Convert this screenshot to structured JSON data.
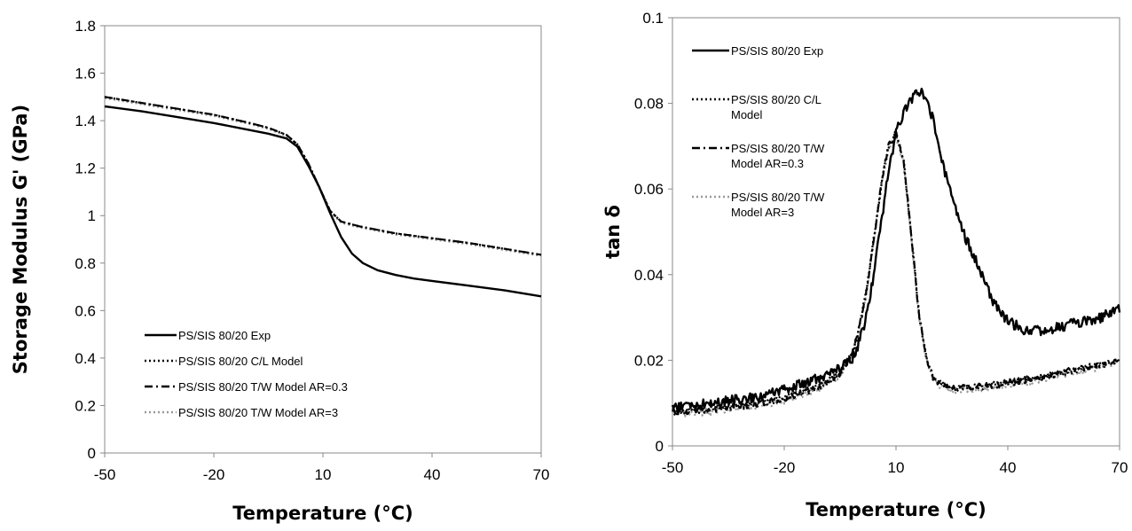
{
  "chart_data": [
    {
      "type": "line",
      "xlabel": "Temperature (°C)",
      "ylabel": "Storage Modulus G' (GPa)",
      "xlim": [
        -50,
        70
      ],
      "ylim": [
        0,
        1.8
      ],
      "xticks": [
        -50,
        -20,
        10,
        40,
        70
      ],
      "xtick_labels": [
        "-50",
        "-20",
        "10",
        "40",
        "70"
      ],
      "yticks": [
        0,
        0.2,
        0.4,
        0.6,
        0.8,
        1,
        1.2,
        1.4,
        1.6,
        1.8
      ],
      "ytick_labels": [
        "0",
        "0.2",
        "0.4",
        "0.6",
        "0.8",
        "1",
        "1.2",
        "1.4",
        "1.6",
        "1.8"
      ],
      "grid": false,
      "legend_position": "bottom-left",
      "series": [
        {
          "name": "PS/SIS 80/20 Exp",
          "style": "solid",
          "color": "#000000",
          "x": [
            -50,
            -40,
            -30,
            -20,
            -10,
            -5,
            0,
            3,
            6,
            9,
            12,
            15,
            18,
            21,
            25,
            30,
            35,
            40,
            50,
            60,
            70
          ],
          "y": [
            1.46,
            1.44,
            1.415,
            1.39,
            1.36,
            1.345,
            1.325,
            1.29,
            1.21,
            1.12,
            1.01,
            0.91,
            0.84,
            0.8,
            0.77,
            0.75,
            0.735,
            0.725,
            0.705,
            0.685,
            0.66
          ]
        },
        {
          "name": "PS/SIS 80/20 C/L Model",
          "style": "dotted",
          "color": "#000000",
          "x": [
            -50,
            -40,
            -30,
            -20,
            -10,
            -5,
            0,
            3,
            6,
            9,
            12,
            15,
            20,
            25,
            30,
            40,
            50,
            60,
            70
          ],
          "y": [
            1.5,
            1.475,
            1.45,
            1.425,
            1.39,
            1.37,
            1.34,
            1.3,
            1.22,
            1.12,
            1.02,
            0.975,
            0.955,
            0.94,
            0.925,
            0.905,
            0.885,
            0.86,
            0.835
          ]
        },
        {
          "name": "PS/SIS 80/20 T/W Model AR=0.3",
          "style": "dashdot",
          "color": "#000000",
          "x": [
            -50,
            -40,
            -30,
            -20,
            -10,
            -5,
            0,
            3,
            6,
            9,
            12,
            15,
            20,
            25,
            30,
            40,
            50,
            60,
            70
          ],
          "y": [
            1.5,
            1.475,
            1.45,
            1.425,
            1.39,
            1.37,
            1.34,
            1.3,
            1.22,
            1.12,
            1.02,
            0.975,
            0.955,
            0.94,
            0.925,
            0.905,
            0.885,
            0.86,
            0.835
          ]
        },
        {
          "name": "PS/SIS 80/20 T/W Model AR=3",
          "style": "dotted",
          "color": "#999999",
          "x": [
            -50,
            -40,
            -30,
            -20,
            -10,
            -5,
            0,
            3,
            6,
            9,
            12,
            15,
            20,
            25,
            30,
            40,
            50,
            60,
            70
          ],
          "y": [
            1.495,
            1.47,
            1.445,
            1.42,
            1.385,
            1.365,
            1.335,
            1.295,
            1.215,
            1.115,
            1.015,
            0.97,
            0.95,
            0.935,
            0.92,
            0.9,
            0.88,
            0.855,
            0.83
          ]
        }
      ]
    },
    {
      "type": "line",
      "xlabel": "Temperature (°C)",
      "ylabel": "tan δ",
      "xlim": [
        -50,
        70
      ],
      "ylim": [
        0,
        0.1
      ],
      "xticks": [
        -50,
        -20,
        10,
        40,
        70
      ],
      "xtick_labels": [
        "-50",
        "-20",
        "10",
        "40",
        "70"
      ],
      "yticks": [
        0,
        0.02,
        0.04,
        0.06,
        0.08,
        0.1
      ],
      "ytick_labels": [
        "0",
        "0.02",
        "0.04",
        "0.06",
        "0.08",
        "0.1"
      ],
      "grid": false,
      "legend_position": "top-left",
      "series": [
        {
          "name": "PS/SIS 80/20 Exp",
          "legend_lines": [
            "PS/SIS 80/20 Exp"
          ],
          "style": "solid",
          "color": "#000000",
          "noise": 0.0012,
          "x": [
            -50,
            -40,
            -30,
            -20,
            -10,
            -5,
            -2,
            0,
            2,
            4,
            6,
            8,
            10,
            12,
            14,
            16,
            18,
            20,
            22,
            24,
            26,
            28,
            30,
            32,
            34,
            36,
            38,
            40,
            45,
            50,
            55,
            60,
            65,
            70
          ],
          "y": [
            0.009,
            0.01,
            0.011,
            0.013,
            0.016,
            0.018,
            0.02,
            0.024,
            0.03,
            0.04,
            0.052,
            0.064,
            0.073,
            0.078,
            0.081,
            0.083,
            0.082,
            0.076,
            0.068,
            0.061,
            0.055,
            0.05,
            0.046,
            0.042,
            0.038,
            0.034,
            0.031,
            0.029,
            0.027,
            0.027,
            0.028,
            0.029,
            0.03,
            0.032
          ]
        },
        {
          "name": "PS/SIS 80/20 C/L Model",
          "legend_lines": [
            "PS/SIS 80/20 C/L",
            "Model"
          ],
          "style": "dotted",
          "color": "#000000",
          "noise": 0.0008,
          "x": [
            -50,
            -40,
            -30,
            -20,
            -10,
            -5,
            -2,
            0,
            2,
            4,
            6,
            8,
            10,
            12,
            14,
            16,
            18,
            20,
            22,
            24,
            26,
            28,
            30,
            35,
            40,
            45,
            50,
            55,
            60,
            65,
            70
          ],
          "y": [
            0.008,
            0.0085,
            0.0095,
            0.011,
            0.014,
            0.017,
            0.021,
            0.027,
            0.036,
            0.048,
            0.061,
            0.07,
            0.073,
            0.067,
            0.05,
            0.032,
            0.021,
            0.016,
            0.0145,
            0.0138,
            0.0135,
            0.0135,
            0.0137,
            0.014,
            0.0147,
            0.0155,
            0.0163,
            0.0172,
            0.018,
            0.019,
            0.02
          ]
        },
        {
          "name": "PS/SIS 80/20 T/W Model AR=0.3",
          "legend_lines": [
            "PS/SIS 80/20 T/W",
            "Model AR=0.3"
          ],
          "style": "dashdot",
          "color": "#000000",
          "noise": 0.0008,
          "x": [
            -50,
            -40,
            -30,
            -20,
            -10,
            -5,
            -2,
            0,
            2,
            4,
            6,
            8,
            10,
            12,
            14,
            16,
            18,
            20,
            22,
            24,
            26,
            28,
            30,
            35,
            40,
            45,
            50,
            55,
            60,
            65,
            70
          ],
          "y": [
            0.008,
            0.0085,
            0.0095,
            0.011,
            0.014,
            0.017,
            0.021,
            0.027,
            0.036,
            0.048,
            0.061,
            0.07,
            0.073,
            0.067,
            0.05,
            0.032,
            0.021,
            0.016,
            0.0145,
            0.0138,
            0.0135,
            0.0135,
            0.0137,
            0.014,
            0.0147,
            0.0155,
            0.0163,
            0.0172,
            0.018,
            0.019,
            0.02
          ]
        },
        {
          "name": "PS/SIS 80/20 T/W Model AR=3",
          "legend_lines": [
            "PS/SIS 80/20 T/W",
            "Model AR=3"
          ],
          "style": "dotted",
          "color": "#999999",
          "noise": 0.0008,
          "x": [
            -50,
            -40,
            -30,
            -20,
            -10,
            -5,
            -2,
            0,
            2,
            4,
            6,
            8,
            10,
            12,
            14,
            16,
            18,
            20,
            22,
            24,
            26,
            28,
            30,
            35,
            40,
            45,
            50,
            55,
            60,
            65,
            70
          ],
          "y": [
            0.0075,
            0.008,
            0.009,
            0.0105,
            0.0135,
            0.0165,
            0.0205,
            0.0265,
            0.0355,
            0.0475,
            0.0605,
            0.0695,
            0.0725,
            0.0665,
            0.0495,
            0.0315,
            0.0205,
            0.0155,
            0.014,
            0.0133,
            0.013,
            0.013,
            0.0132,
            0.0135,
            0.0142,
            0.015,
            0.0158,
            0.0167,
            0.0175,
            0.0185,
            0.0195
          ]
        }
      ]
    }
  ]
}
